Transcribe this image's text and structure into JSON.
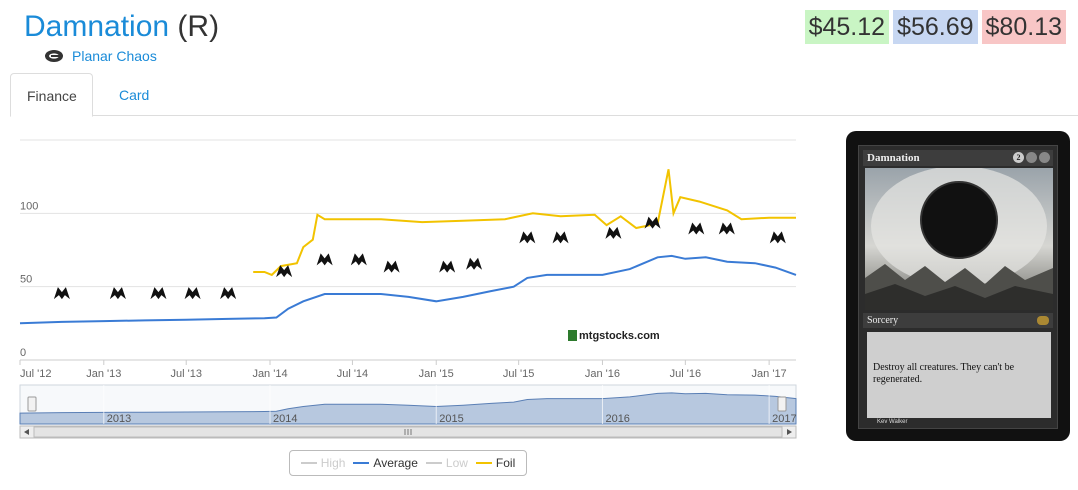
{
  "card": {
    "name": "Damnation",
    "rarity": "(R)",
    "set": "Planar Chaos"
  },
  "prices": {
    "low": "$45.12",
    "average": "$56.69",
    "high": "$80.13"
  },
  "tabs": [
    "Finance",
    "Card"
  ],
  "watermark": "mtgstocks.com",
  "legend": [
    {
      "label": "High",
      "color": "#cccccc",
      "enabled": false
    },
    {
      "label": "Average",
      "color": "#3a7bd5",
      "enabled": true
    },
    {
      "label": "Low",
      "color": "#cccccc",
      "enabled": false
    },
    {
      "label": "Foil",
      "color": "#f2c300",
      "enabled": true
    }
  ],
  "card_image": {
    "name": "Damnation",
    "mana_cost": [
      "2",
      "B",
      "B"
    ],
    "type_line": "Sorcery",
    "rules_text": "Destroy all creatures. They can't be regenerated.",
    "artist": "Kev Walker"
  },
  "chart_data": {
    "type": "line",
    "title": "",
    "xlabel": "",
    "ylabel": "",
    "ylim": [
      0,
      150
    ],
    "yticks": [
      0,
      50,
      100
    ],
    "x_ticks": [
      "Jul '12",
      "Jan '13",
      "Jul '13",
      "Jan '14",
      "Jul '14",
      "Jan '15",
      "Jul '15",
      "Jan '16",
      "Jul '16",
      "Jan '17"
    ],
    "navigator_labels": [
      "2013",
      "2014",
      "2015",
      "2016",
      "2017"
    ],
    "series": [
      {
        "name": "Average",
        "color": "#3a7bd5",
        "points": [
          [
            "2012-07-01",
            25
          ],
          [
            "2012-10-01",
            26
          ],
          [
            "2013-01-01",
            26.5
          ],
          [
            "2013-04-01",
            27
          ],
          [
            "2013-07-01",
            27.5
          ],
          [
            "2013-10-01",
            28
          ],
          [
            "2013-12-20",
            28.5
          ],
          [
            "2014-01-15",
            29
          ],
          [
            "2014-02-10",
            35
          ],
          [
            "2014-03-15",
            40
          ],
          [
            "2014-05-01",
            45
          ],
          [
            "2014-07-01",
            45
          ],
          [
            "2014-09-01",
            45
          ],
          [
            "2014-11-01",
            43
          ],
          [
            "2015-01-01",
            40
          ],
          [
            "2015-03-01",
            43
          ],
          [
            "2015-05-01",
            47
          ],
          [
            "2015-06-20",
            50
          ],
          [
            "2015-07-20",
            56
          ],
          [
            "2015-09-01",
            58
          ],
          [
            "2015-11-01",
            58
          ],
          [
            "2016-01-01",
            58
          ],
          [
            "2016-03-01",
            62
          ],
          [
            "2016-05-01",
            70
          ],
          [
            "2016-06-01",
            71
          ],
          [
            "2016-07-01",
            69
          ],
          [
            "2016-08-15",
            70
          ],
          [
            "2016-10-01",
            67
          ],
          [
            "2016-12-01",
            66
          ],
          [
            "2017-01-15",
            63
          ],
          [
            "2017-03-01",
            58
          ]
        ]
      },
      {
        "name": "Foil",
        "color": "#f2c300",
        "points": [
          [
            "2013-11-25",
            60
          ],
          [
            "2013-12-20",
            60
          ],
          [
            "2014-01-05",
            58
          ],
          [
            "2014-01-25",
            64
          ],
          [
            "2014-03-01",
            66
          ],
          [
            "2014-03-15",
            77
          ],
          [
            "2014-04-05",
            82
          ],
          [
            "2014-04-15",
            99
          ],
          [
            "2014-05-01",
            96
          ],
          [
            "2014-06-01",
            96
          ],
          [
            "2014-09-01",
            96
          ],
          [
            "2014-12-01",
            94
          ],
          [
            "2015-03-01",
            95
          ],
          [
            "2015-06-01",
            96
          ],
          [
            "2015-08-01",
            100
          ],
          [
            "2015-10-01",
            98
          ],
          [
            "2015-12-15",
            99
          ],
          [
            "2016-01-10",
            92
          ],
          [
            "2016-02-10",
            98
          ],
          [
            "2016-03-15",
            90
          ],
          [
            "2016-05-01",
            93
          ],
          [
            "2016-05-25",
            130
          ],
          [
            "2016-06-05",
            100
          ],
          [
            "2016-06-20",
            111
          ],
          [
            "2016-08-01",
            108
          ],
          [
            "2016-10-01",
            102
          ],
          [
            "2016-11-01",
            96
          ],
          [
            "2017-01-01",
            97
          ],
          [
            "2017-03-01",
            97
          ]
        ]
      }
    ],
    "grid": true,
    "legend_position": "bottom-center"
  }
}
